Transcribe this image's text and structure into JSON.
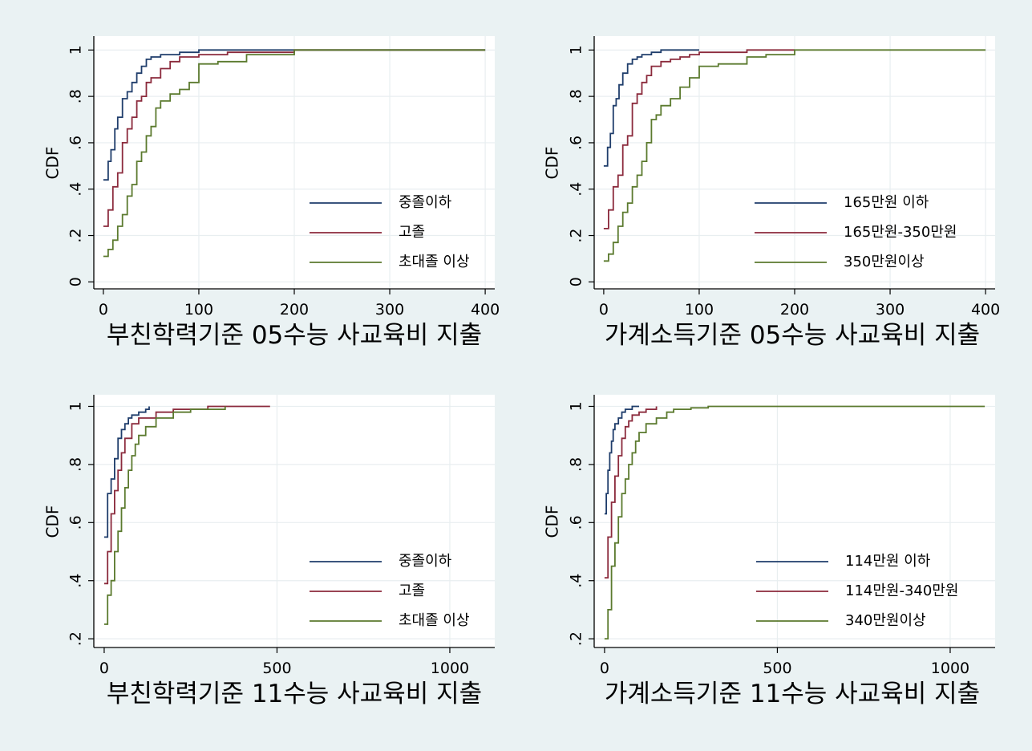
{
  "colors": {
    "background": "#eaf2f3",
    "plot_background": "#ffffff",
    "grid": "#e8eef0",
    "series": [
      "#1f3d6b",
      "#8b2a3c",
      "#5b7a2e"
    ]
  },
  "chart_data": [
    {
      "type": "line",
      "step": true,
      "title": "",
      "xlabel": "부친학력기준  05수능 사교육비 지출",
      "ylabel": "CDF",
      "xlim": [
        -10,
        410
      ],
      "ylim": [
        -0.03,
        1.06
      ],
      "xticks": [
        0,
        100,
        200,
        300,
        400
      ],
      "xtick_labels": [
        "0",
        "100",
        "200",
        "300",
        "400"
      ],
      "yticks": [
        0,
        0.2,
        0.4,
        0.6,
        0.8,
        1
      ],
      "ytick_labels": [
        "0",
        ".2",
        ".4",
        ".6",
        ".8",
        "1"
      ],
      "grid": true,
      "legend": "bottom-right",
      "series": [
        {
          "name": "중졸이하",
          "x": [
            0,
            5,
            8,
            12,
            15,
            20,
            25,
            30,
            35,
            40,
            45,
            50,
            60,
            80,
            100,
            150,
            200,
            400
          ],
          "y": [
            0.44,
            0.52,
            0.57,
            0.66,
            0.71,
            0.79,
            0.82,
            0.86,
            0.9,
            0.93,
            0.96,
            0.97,
            0.98,
            0.99,
            1.0,
            1.0,
            1.0,
            1.0
          ]
        },
        {
          "name": "고졸",
          "x": [
            0,
            5,
            10,
            15,
            20,
            25,
            30,
            35,
            40,
            45,
            50,
            60,
            70,
            80,
            100,
            130,
            150,
            200,
            400
          ],
          "y": [
            0.24,
            0.31,
            0.41,
            0.47,
            0.6,
            0.66,
            0.71,
            0.78,
            0.8,
            0.86,
            0.88,
            0.92,
            0.95,
            0.97,
            0.98,
            0.99,
            0.99,
            1.0,
            1.0
          ]
        },
        {
          "name": "초대졸 이상",
          "x": [
            0,
            5,
            10,
            15,
            20,
            25,
            30,
            35,
            40,
            45,
            50,
            55,
            60,
            70,
            80,
            90,
            100,
            120,
            150,
            170,
            200,
            400
          ],
          "y": [
            0.11,
            0.14,
            0.18,
            0.24,
            0.29,
            0.37,
            0.42,
            0.52,
            0.56,
            0.63,
            0.67,
            0.75,
            0.78,
            0.81,
            0.83,
            0.86,
            0.94,
            0.95,
            0.98,
            0.98,
            1.0,
            1.0
          ]
        }
      ]
    },
    {
      "type": "line",
      "step": true,
      "title": "",
      "xlabel": "가계소득기준  05수능 사교육비 지출",
      "ylabel": "CDF",
      "xlim": [
        -10,
        410
      ],
      "ylim": [
        -0.03,
        1.06
      ],
      "xticks": [
        0,
        100,
        200,
        300,
        400
      ],
      "xtick_labels": [
        "0",
        "100",
        "200",
        "300",
        "400"
      ],
      "yticks": [
        0,
        0.2,
        0.4,
        0.6,
        0.8,
        1
      ],
      "ytick_labels": [
        "0",
        ".2",
        ".4",
        ".6",
        ".8",
        "1"
      ],
      "grid": true,
      "legend": "bottom-right",
      "series": [
        {
          "name": "165만원 이하",
          "x": [
            0,
            4,
            7,
            10,
            13,
            16,
            20,
            25,
            30,
            35,
            40,
            50,
            60,
            80,
            100
          ],
          "y": [
            0.5,
            0.58,
            0.64,
            0.76,
            0.79,
            0.85,
            0.9,
            0.94,
            0.96,
            0.97,
            0.98,
            0.99,
            1.0,
            1.0,
            1.0
          ]
        },
        {
          "name": "165만원-350만원",
          "x": [
            0,
            5,
            10,
            15,
            20,
            25,
            30,
            35,
            40,
            45,
            50,
            60,
            70,
            80,
            90,
            100,
            150,
            200
          ],
          "y": [
            0.23,
            0.31,
            0.41,
            0.46,
            0.59,
            0.63,
            0.77,
            0.81,
            0.86,
            0.89,
            0.93,
            0.95,
            0.96,
            0.97,
            0.98,
            0.99,
            1.0,
            1.0
          ]
        },
        {
          "name": "350만원이상",
          "x": [
            0,
            5,
            10,
            15,
            20,
            25,
            30,
            35,
            40,
            45,
            50,
            55,
            60,
            70,
            80,
            90,
            100,
            120,
            150,
            170,
            200,
            400
          ],
          "y": [
            0.09,
            0.12,
            0.17,
            0.24,
            0.3,
            0.34,
            0.41,
            0.46,
            0.52,
            0.6,
            0.7,
            0.72,
            0.76,
            0.79,
            0.84,
            0.88,
            0.93,
            0.94,
            0.97,
            0.98,
            1.0,
            1.0
          ]
        }
      ]
    },
    {
      "type": "line",
      "step": true,
      "title": "",
      "xlabel": "부친학력기준  11수능 사교육비 지출",
      "ylabel": "CDF",
      "xlim": [
        -30,
        1130
      ],
      "ylim": [
        0.17,
        1.04
      ],
      "xticks": [
        0,
        500,
        1000
      ],
      "xtick_labels": [
        "0",
        "500",
        "1000"
      ],
      "yticks": [
        0.2,
        0.4,
        0.6,
        0.8,
        1
      ],
      "ytick_labels": [
        ".2",
        ".4",
        ".6",
        ".8",
        "1"
      ],
      "grid": true,
      "legend": "bottom-right",
      "series": [
        {
          "name": "중졸이하",
          "x": [
            0,
            10,
            20,
            30,
            40,
            50,
            60,
            70,
            80,
            100,
            120,
            130
          ],
          "y": [
            0.55,
            0.7,
            0.75,
            0.82,
            0.89,
            0.92,
            0.94,
            0.96,
            0.97,
            0.98,
            0.99,
            1.0
          ]
        },
        {
          "name": "고졸",
          "x": [
            0,
            10,
            20,
            30,
            40,
            50,
            60,
            80,
            100,
            150,
            200,
            300,
            480
          ],
          "y": [
            0.39,
            0.5,
            0.63,
            0.71,
            0.78,
            0.84,
            0.89,
            0.94,
            0.96,
            0.98,
            0.99,
            1.0,
            1.0
          ]
        },
        {
          "name": "초대졸 이상",
          "x": [
            0,
            10,
            20,
            30,
            40,
            50,
            60,
            70,
            80,
            90,
            100,
            120,
            150,
            200,
            250,
            350
          ],
          "y": [
            0.25,
            0.35,
            0.4,
            0.5,
            0.57,
            0.65,
            0.72,
            0.78,
            0.83,
            0.87,
            0.9,
            0.93,
            0.96,
            0.98,
            0.99,
            1.0
          ]
        }
      ]
    },
    {
      "type": "line",
      "step": true,
      "title": "",
      "xlabel": "가계소득기준  11수능 사교육비 지출",
      "ylabel": "CDF",
      "xlim": [
        -30,
        1130
      ],
      "ylim": [
        0.17,
        1.04
      ],
      "xticks": [
        0,
        500,
        1000
      ],
      "xtick_labels": [
        "0",
        "500",
        "1000"
      ],
      "yticks": [
        0.2,
        0.4,
        0.6,
        0.8,
        1
      ],
      "ytick_labels": [
        ".2",
        ".4",
        ".6",
        ".8",
        "1"
      ],
      "grid": true,
      "legend": "bottom-right",
      "series": [
        {
          "name": "114만원 이하",
          "x": [
            0,
            5,
            10,
            15,
            20,
            25,
            30,
            40,
            50,
            60,
            80,
            100
          ],
          "y": [
            0.63,
            0.7,
            0.78,
            0.84,
            0.88,
            0.92,
            0.94,
            0.96,
            0.98,
            0.99,
            1.0,
            1.0
          ]
        },
        {
          "name": "114만원-340만원",
          "x": [
            0,
            10,
            20,
            30,
            40,
            50,
            60,
            70,
            80,
            100,
            120,
            150
          ],
          "y": [
            0.41,
            0.55,
            0.67,
            0.76,
            0.83,
            0.89,
            0.93,
            0.95,
            0.97,
            0.98,
            0.99,
            1.0
          ]
        },
        {
          "name": "340만원이상",
          "x": [
            0,
            10,
            20,
            30,
            40,
            50,
            60,
            70,
            80,
            90,
            100,
            120,
            150,
            180,
            200,
            250,
            300,
            400,
            1100
          ],
          "y": [
            0.2,
            0.3,
            0.45,
            0.53,
            0.62,
            0.7,
            0.75,
            0.8,
            0.84,
            0.88,
            0.91,
            0.94,
            0.96,
            0.98,
            0.99,
            0.995,
            1.0,
            1.0,
            1.0
          ]
        }
      ]
    }
  ]
}
